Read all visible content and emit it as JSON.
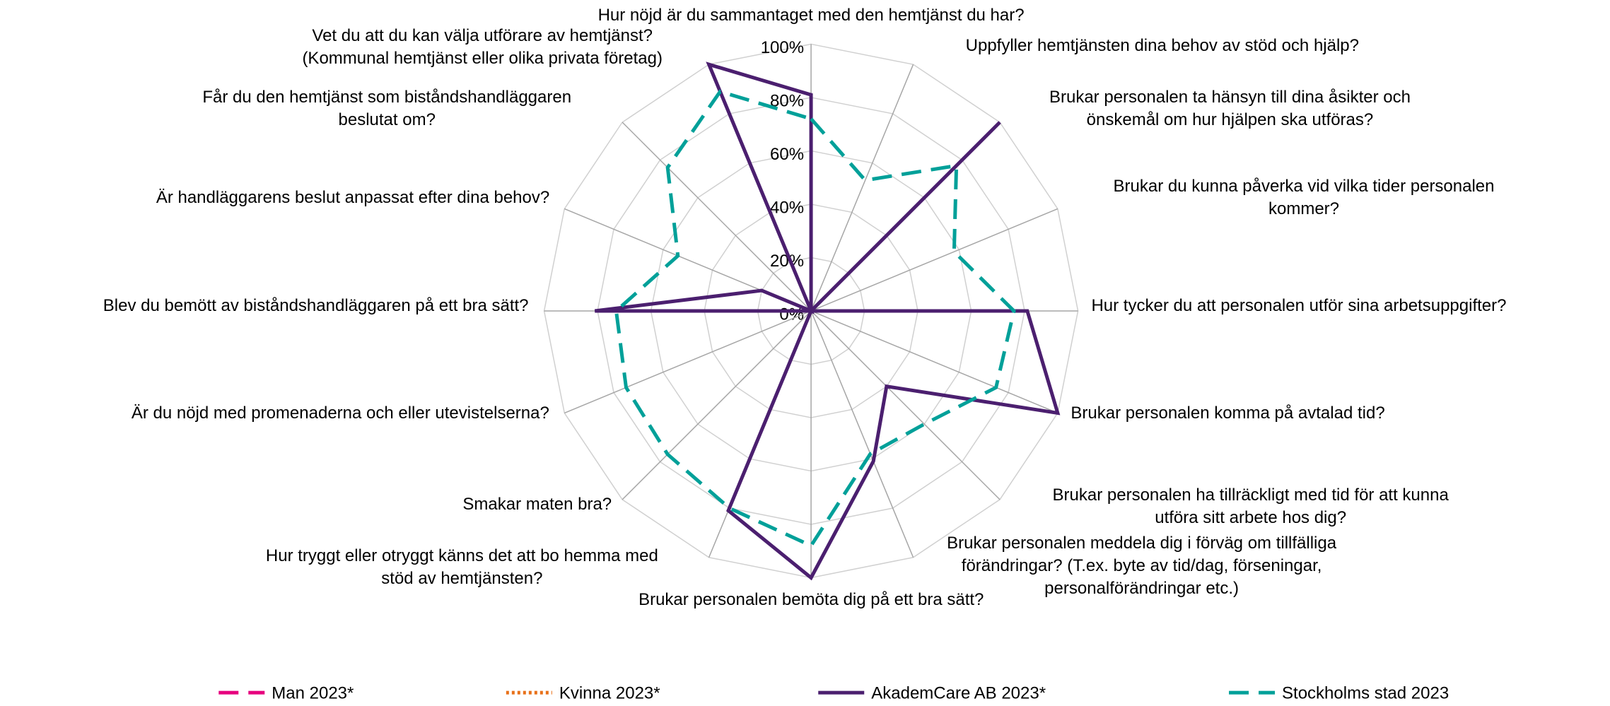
{
  "chart_data": {
    "type": "radar",
    "categories": [
      "Hur nöjd är du sammantaget med den hemtjänst du har?",
      "Uppfyller hemtjänsten dina behov av stöd och hjälp?",
      "Brukar personalen ta hänsyn till dina åsikter och\nönskemål om hur hjälpen ska utföras?",
      "Brukar du kunna påverka vid vilka tider personalen\nkommer?",
      "Hur tycker du att personalen utför sina  arbetsuppgifter?",
      "Brukar personalen komma på avtalad tid?",
      "Brukar personalen ha tillräckligt med tid för att kunna\nutföra sitt arbete hos dig?",
      "Brukar personalen meddela dig i förväg om tillfälliga\nförändringar? (T.ex. byte av tid/dag, förseningar,\npersonalförändringar etc.)",
      "Brukar personalen bemöta dig på ett bra sätt?",
      "Hur tryggt eller otryggt känns det att bo hemma med\nstöd av hemtjänsten?",
      "Smakar maten bra?",
      "Är du nöjd med promenaderna och eller utevistelserna?",
      "Blev du bemött av biståndshandläggaren på ett bra sätt?",
      "Är handläggarens beslut anpassat efter dina behov?",
      "Får du den hemtjänst som biståndshandläggaren\nbeslutat om?",
      "Vet du att du kan välja utförare av hemtjänst?\n(Kommunal hemtjänst eller olika privata företag)"
    ],
    "series": [
      {
        "name": "Man 2023*",
        "color": "#e6007e",
        "dash": "dashed",
        "values": [
          null,
          null,
          null,
          null,
          null,
          null,
          null,
          null,
          null,
          null,
          null,
          null,
          null,
          null,
          null,
          null
        ]
      },
      {
        "name": "Kvinna 2023*",
        "color": "#e8711a",
        "dash": "dotted",
        "values": [
          null,
          null,
          null,
          null,
          null,
          null,
          null,
          null,
          null,
          null,
          null,
          null,
          null,
          null,
          null,
          null
        ]
      },
      {
        "name": "AkademCare AB 2023*",
        "color": "#4b1f6f",
        "dash": "solid",
        "values": [
          81,
          0,
          100,
          0,
          81,
          100,
          40,
          61,
          100,
          81,
          0,
          0,
          81,
          20,
          0,
          100
        ]
      },
      {
        "name": "Stockholms stad 2023",
        "color": "#00a099",
        "dash": "dashed",
        "values": [
          72,
          53,
          77,
          58,
          76,
          75,
          60,
          58,
          88,
          80,
          76,
          75,
          73,
          54,
          76,
          89
        ]
      }
    ],
    "ylim": [
      0,
      100
    ],
    "yticks": [
      {
        "value": 0,
        "label": "0%"
      },
      {
        "value": 20,
        "label": "20%"
      },
      {
        "value": 40,
        "label": "40%"
      },
      {
        "value": 60,
        "label": "60%"
      },
      {
        "value": 80,
        "label": "80%"
      },
      {
        "value": 100,
        "label": "100%"
      }
    ],
    "grid": true,
    "legend": "bottom"
  }
}
